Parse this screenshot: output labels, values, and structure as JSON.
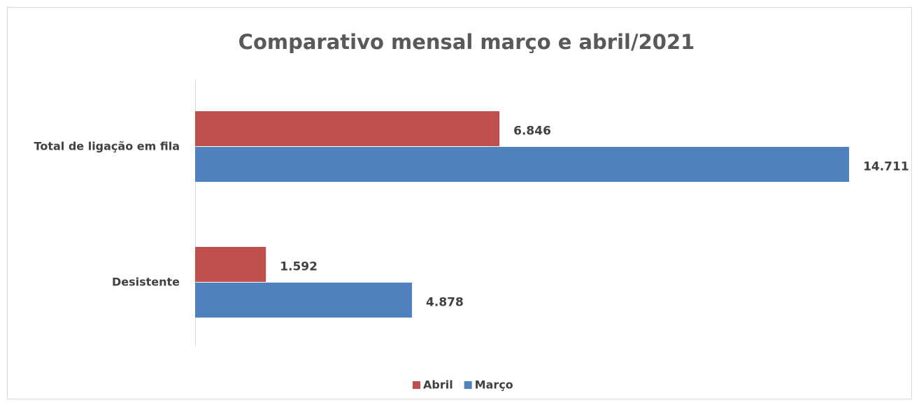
{
  "chart_data": {
    "type": "bar",
    "orientation": "horizontal",
    "title": "Comparativo mensal março e abril/2021",
    "categories": [
      "Total de ligação em fila",
      "Desistente"
    ],
    "series": [
      {
        "name": "Abril",
        "color": "#c0504d",
        "values": [
          6846,
          1592
        ],
        "value_labels": [
          "6.846",
          "1.592"
        ]
      },
      {
        "name": "Março",
        "color": "#4f81bd",
        "values": [
          14711,
          4878
        ],
        "value_labels": [
          "14.711",
          "4.878"
        ]
      }
    ],
    "xlim": [
      0,
      16000
    ],
    "legend": "bottom"
  }
}
